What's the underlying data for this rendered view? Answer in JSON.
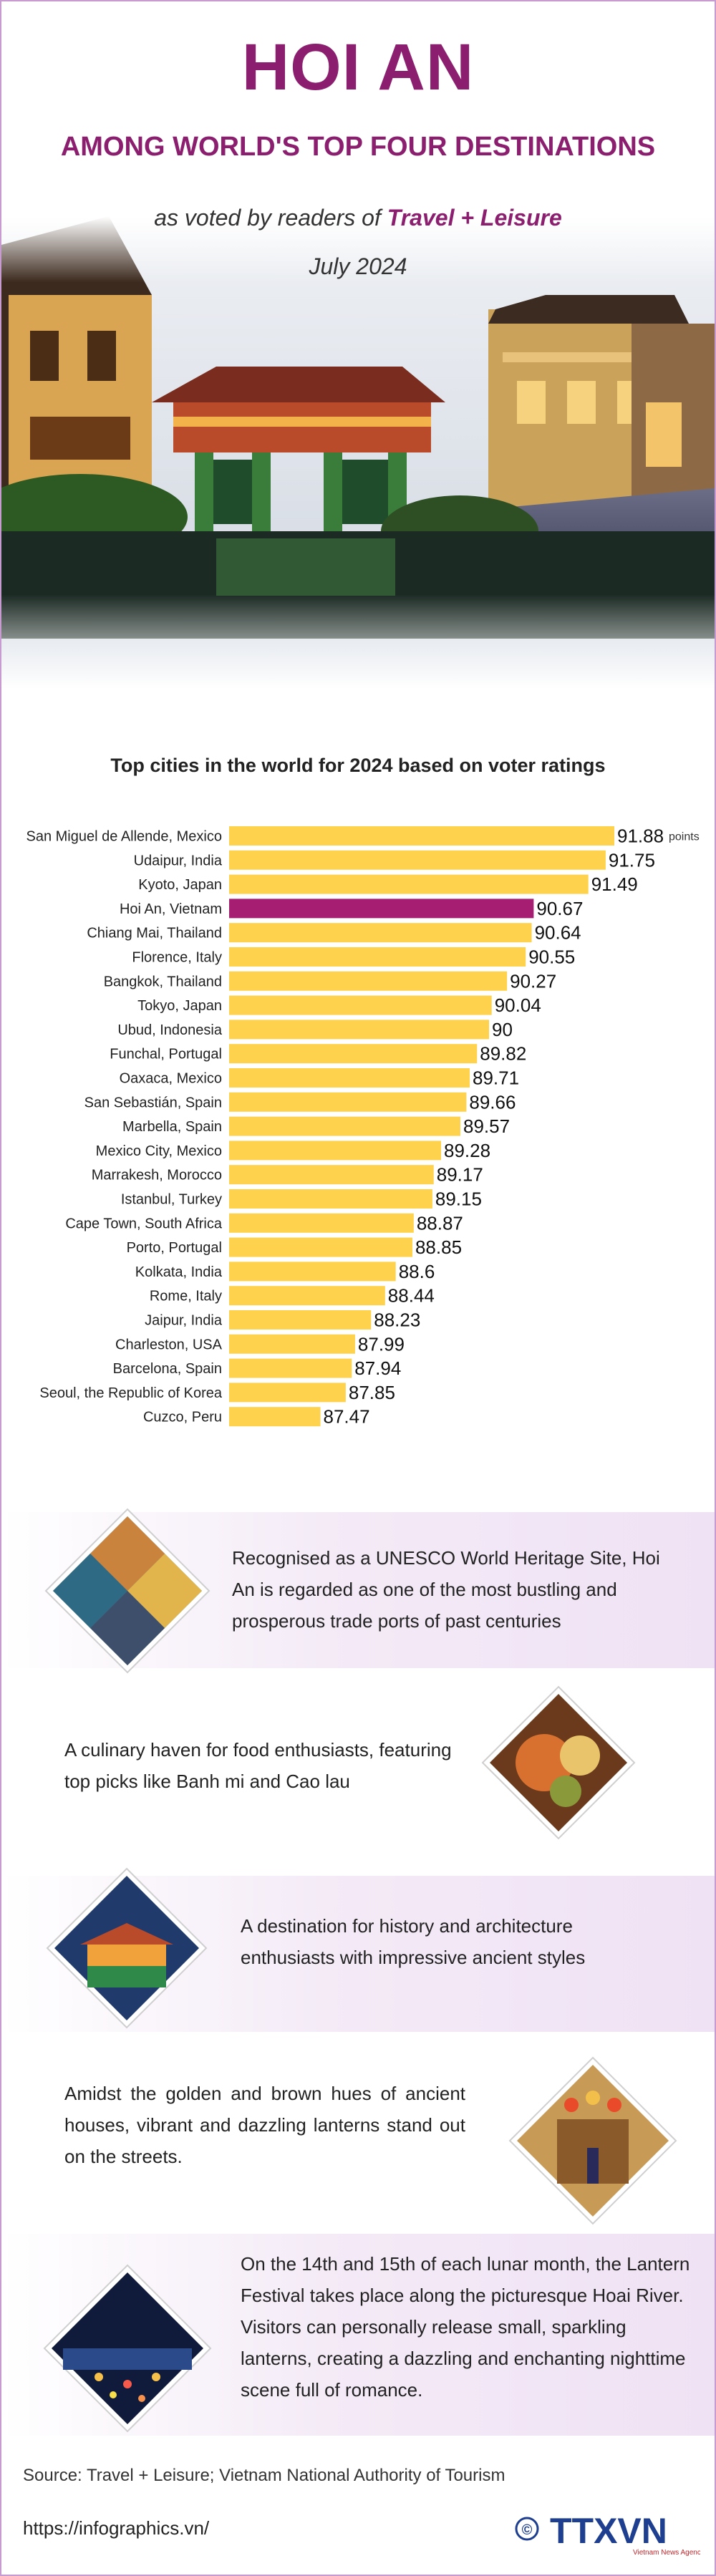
{
  "header": {
    "title": "HOI AN",
    "subtitle": "AMONG WORLD'S TOP FOUR DESTINATIONS",
    "voted_prefix": "as voted by readers of",
    "voted_magazine": "Travel + Leisure",
    "date": "July 2024"
  },
  "colors": {
    "accent": "#8b1e6e",
    "bar": "#ffd24d",
    "highlight_bar": "#a51e72",
    "panel_tint": "#f1e4f5"
  },
  "chart_data": {
    "type": "bar",
    "orientation": "horizontal",
    "title": "Top cities in the world for 2024 based on voter ratings",
    "unit_label": "points",
    "highlight": "Hoi An, Vietnam",
    "categories": [
      "San Miguel de Allende, Mexico",
      "Udaipur, India",
      "Kyoto, Japan",
      "Hoi An, Vietnam",
      "Chiang Mai, Thailand",
      "Florence, Italy",
      "Bangkok, Thailand",
      "Tokyo, Japan",
      "Ubud, Indonesia",
      "Funchal, Portugal",
      "Oaxaca, Mexico",
      "San Sebastián, Spain",
      "Marbella, Spain",
      "Mexico City, Mexico",
      "Marrakesh, Morocco",
      "Istanbul, Turkey",
      "Cape Town, South Africa",
      "Porto, Portugal",
      "Kolkata, India",
      "Rome, Italy",
      "Jaipur, India",
      "Charleston, USA",
      "Barcelona, Spain",
      "Seoul, the Republic of Korea",
      "Cuzco, Peru"
    ],
    "values": [
      91.88,
      91.75,
      91.49,
      90.67,
      90.64,
      90.55,
      90.27,
      90.04,
      90,
      89.82,
      89.71,
      89.66,
      89.57,
      89.28,
      89.17,
      89.15,
      88.87,
      88.85,
      88.6,
      88.44,
      88.23,
      87.99,
      87.94,
      87.85,
      87.47
    ],
    "value_labels": [
      "91.88",
      "91.75",
      "91.49",
      "90.67",
      "90.64",
      "90.55",
      "90.27",
      "90.04",
      "90",
      "89.82",
      "89.71",
      "89.66",
      "89.57",
      "89.28",
      "89.17",
      "89.15",
      "88.87",
      "88.85",
      "88.6",
      "88.44",
      "88.23",
      "87.99",
      "87.94",
      "87.85",
      "87.47"
    ],
    "xlim": [
      86.1,
      91.88
    ],
    "grid": false,
    "legend": "none"
  },
  "features": [
    {
      "text": "Recognised as a UNESCO World Heritage Site, Hoi An is regarded as one of the most bustling and prosperous trade ports of past centuries",
      "icon": "old-town-photo-icon"
    },
    {
      "text": "A culinary haven for food enthusiasts, featuring top picks like Banh mi and Cao lau",
      "icon": "food-photo-icon"
    },
    {
      "text": "A destination for history and architecture enthusiasts with impressive ancient styles",
      "icon": "bridge-photo-icon"
    },
    {
      "text": "Amidst the golden and brown hues of ancient houses, vibrant and dazzling lanterns stand out on the streets.",
      "icon": "lantern-street-photo-icon"
    },
    {
      "text": "On the 14th and 15th of each lunar month, the Lantern Festival takes place along the picturesque Hoai River. Visitors can personally release small, sparkling lanterns, creating a dazzling and enchanting nighttime scene full of romance.",
      "icon": "river-night-photo-icon"
    }
  ],
  "footer": {
    "source": "Source: Travel + Leisure; Vietnam National Authority of Tourism",
    "url": "https://infographics.vn/",
    "logo_text": "TTXVN",
    "copyright": "©",
    "agency": "Vietnam News Agency"
  }
}
